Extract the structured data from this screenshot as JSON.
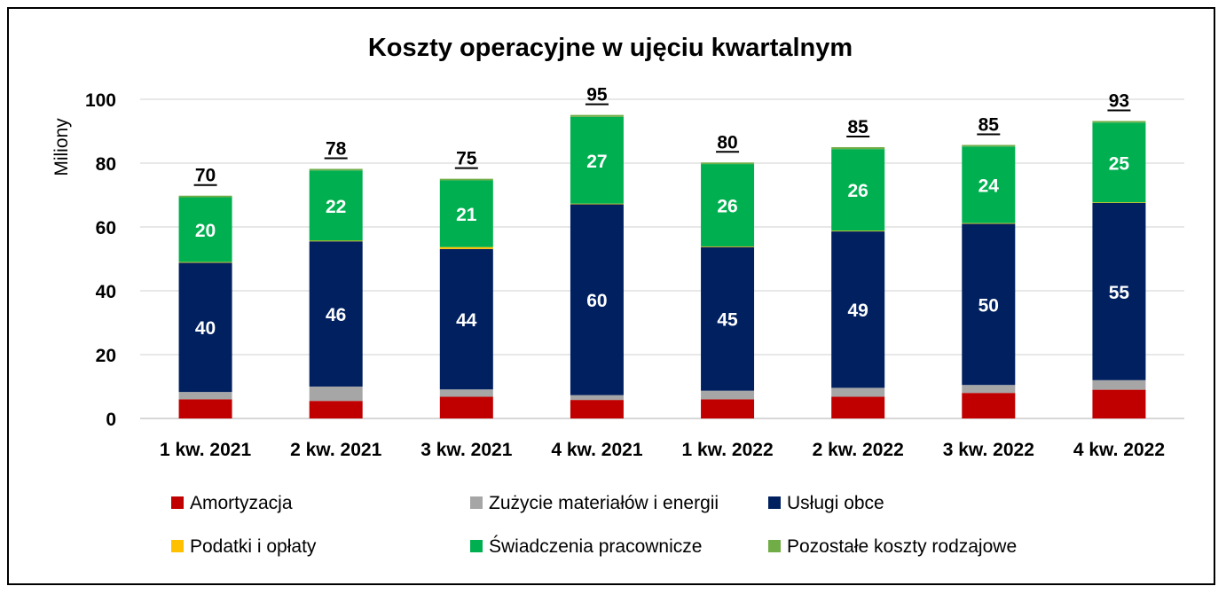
{
  "chart_data": {
    "type": "bar",
    "stacked": true,
    "title": "Koszty operacyjne w ujęciu kwartalnym",
    "ylabel": "Miliony",
    "xlabel": "",
    "ylim": [
      0,
      100
    ],
    "yticks": [
      "0",
      "20",
      "40",
      "60",
      "80",
      "100"
    ],
    "grid": true,
    "legend_position": "bottom",
    "categories": [
      "1 kw. 2021",
      "2 kw. 2021",
      "3 kw. 2021",
      "4 kw. 2021",
      "1 kw. 2022",
      "2 kw. 2022",
      "3 kw. 2022",
      "4 kw. 2022"
    ],
    "totals": [
      70,
      78,
      75,
      95,
      80,
      85,
      85,
      93
    ],
    "series": [
      {
        "name": "Amortyzacja",
        "color": "#C00000",
        "values": [
          6.0,
          5.5,
          6.8,
          5.8,
          6.0,
          6.8,
          8.0,
          9.0
        ],
        "labels": [
          "",
          "",
          "",
          "",
          "",
          "",
          "",
          ""
        ]
      },
      {
        "name": "Zużycie materiałów i energii",
        "color": "#A6A6A6",
        "values": [
          2.3,
          4.5,
          2.3,
          1.5,
          2.7,
          2.8,
          2.5,
          3.0
        ],
        "labels": [
          "",
          "",
          "",
          "",
          "",
          "",
          "",
          ""
        ]
      },
      {
        "name": "Usługi obce",
        "color": "#002060",
        "values": [
          40.5,
          45.5,
          44.0,
          59.8,
          45.0,
          49.0,
          50.5,
          55.5
        ],
        "labels": [
          "40",
          "46",
          "44",
          "60",
          "45",
          "49",
          "50",
          "55"
        ]
      },
      {
        "name": "Podatki i opłaty",
        "color": "#FFC000",
        "values": [
          0.2,
          0.2,
          0.6,
          0.2,
          0.2,
          0.2,
          0.2,
          0.2
        ],
        "labels": [
          "",
          "",
          "",
          "",
          "",
          "",
          "",
          ""
        ]
      },
      {
        "name": "Świadczenia pracownicze",
        "color": "#00B050",
        "values": [
          20.3,
          22.0,
          20.9,
          27.2,
          25.8,
          25.6,
          24.0,
          25.0
        ],
        "labels": [
          "20",
          "22",
          "21",
          "27",
          "26",
          "26",
          "24",
          "25"
        ]
      },
      {
        "name": "Pozostałe koszty rodzajowe",
        "color": "#70AD47",
        "values": [
          0.5,
          0.5,
          0.5,
          0.6,
          0.5,
          0.6,
          0.5,
          0.5
        ],
        "labels": [
          "",
          "",
          "",
          "",
          "",
          "",
          "",
          ""
        ]
      }
    ]
  }
}
